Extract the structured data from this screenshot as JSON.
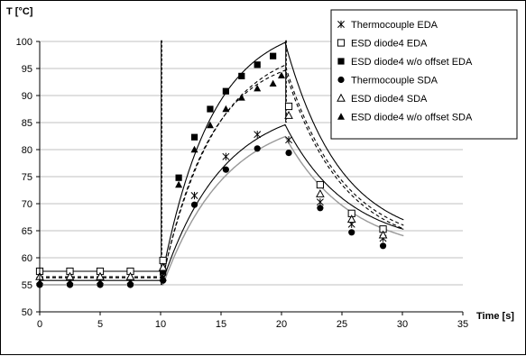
{
  "chart_data": {
    "type": "line",
    "title": "",
    "xlabel": "Time [s]",
    "ylabel": "T [°C]",
    "xlim": [
      0,
      35
    ],
    "ylim": [
      50,
      100
    ],
    "xticks": [
      "0",
      "5",
      "10",
      "15",
      "20",
      "25",
      "30",
      "35"
    ],
    "yticks": [
      "50",
      "55",
      "60",
      "65",
      "70",
      "75",
      "80",
      "85",
      "90",
      "95",
      "100"
    ],
    "grid": "horizontal",
    "legend_position": "top-right",
    "series": [
      {
        "name": "Thermocouple EDA",
        "marker": "asterisk",
        "line_style": "solid",
        "line_color": "#000000",
        "points": [
          [
            0,
            55.8
          ],
          [
            2.5,
            55.8
          ],
          [
            5,
            55.8
          ],
          [
            7.5,
            55.8
          ],
          [
            10.2,
            56.3
          ],
          [
            12.8,
            71.5
          ],
          [
            15.4,
            78.7
          ],
          [
            18,
            82.8
          ],
          [
            20.6,
            81.8
          ],
          [
            23.2,
            70.3
          ],
          [
            25.8,
            66.2
          ],
          [
            28.4,
            63.6
          ]
        ]
      },
      {
        "name": "ESD diode4 EDA",
        "marker": "square-open",
        "line_style": "solid",
        "line_color": "#000000",
        "points": [
          [
            0,
            57.5
          ],
          [
            2.5,
            57.5
          ],
          [
            5,
            57.5
          ],
          [
            7.5,
            57.5
          ],
          [
            10.2,
            59.5
          ],
          [
            20.6,
            88
          ],
          [
            23.2,
            73.5
          ],
          [
            25.8,
            68.2
          ],
          [
            28.4,
            65.3
          ]
        ]
      },
      {
        "name": "ESD diode4 w/o offset EDA",
        "marker": "square-filled",
        "line_style": "solid",
        "line_color": "#000000",
        "points": [
          [
            10.2,
            57.5
          ],
          [
            11.5,
            74.8
          ],
          [
            12.8,
            82.3
          ],
          [
            14.1,
            87.5
          ],
          [
            15.4,
            90.8
          ],
          [
            16.7,
            93.6
          ],
          [
            18,
            95.7
          ],
          [
            19.3,
            97.3
          ]
        ]
      },
      {
        "name": "Thermocouple SDA",
        "marker": "circle-filled",
        "line_style": "solid",
        "line_color": "#999999",
        "points": [
          [
            0,
            55
          ],
          [
            2.5,
            55
          ],
          [
            5,
            55
          ],
          [
            7.5,
            55
          ],
          [
            10.2,
            55.8
          ],
          [
            12.8,
            69.8
          ],
          [
            15.4,
            76.3
          ],
          [
            18,
            80.2
          ],
          [
            20.6,
            79.4
          ],
          [
            23.2,
            69.2
          ],
          [
            25.8,
            64.7
          ],
          [
            28.4,
            62.2
          ]
        ]
      },
      {
        "name": "ESD diode4 SDA",
        "marker": "triangle-open",
        "line_style": "dashed",
        "line_color": "#000000",
        "points": [
          [
            0,
            56.5
          ],
          [
            2.5,
            56.5
          ],
          [
            5,
            56.5
          ],
          [
            7.5,
            56.5
          ],
          [
            10.2,
            58.2
          ],
          [
            20.6,
            86.3
          ],
          [
            23.2,
            71.8
          ],
          [
            25.8,
            67.1
          ],
          [
            28.4,
            64.2
          ]
        ]
      },
      {
        "name": "ESD diode4 w/o offset SDA",
        "marker": "triangle-filled",
        "line_style": "dashed",
        "line_color": "#000000",
        "points": [
          [
            10.2,
            56.3
          ],
          [
            11.5,
            73.5
          ],
          [
            12.8,
            80
          ],
          [
            14.1,
            84.5
          ],
          [
            15.4,
            87.5
          ],
          [
            16.7,
            89.6
          ],
          [
            18,
            91.3
          ],
          [
            19.3,
            92.2
          ],
          [
            20,
            93.7
          ]
        ]
      }
    ]
  }
}
